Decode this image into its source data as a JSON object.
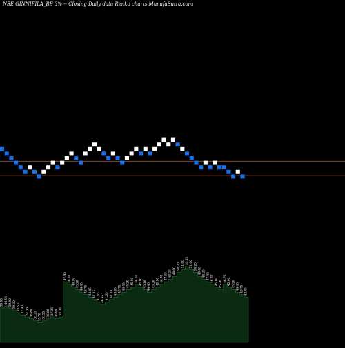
{
  "header": {
    "title": "NSE GINNIFILA_BE 3% -- Closing Daily data  Renko  charts MunafaSutra.com"
  },
  "chart_data": [
    {
      "type": "renko",
      "title": "NSE GINNIFILA_BE 3% -- Closing Daily data  Renko  charts MunafaSutra.com",
      "brick_colors": {
        "up": "#ffffff",
        "down": "#1e6fe6"
      },
      "reference_line_color": "#a0522d",
      "bricks": [
        {
          "i": 0,
          "level": 17,
          "dir": "down"
        },
        {
          "i": 1,
          "level": 16,
          "dir": "down"
        },
        {
          "i": 2,
          "level": 15,
          "dir": "down"
        },
        {
          "i": 3,
          "level": 14,
          "dir": "down"
        },
        {
          "i": 4,
          "level": 13,
          "dir": "down"
        },
        {
          "i": 5,
          "level": 12,
          "dir": "down"
        },
        {
          "i": 6,
          "level": 13,
          "dir": "up"
        },
        {
          "i": 7,
          "level": 12,
          "dir": "down"
        },
        {
          "i": 8,
          "level": 11,
          "dir": "down"
        },
        {
          "i": 9,
          "level": 12,
          "dir": "up"
        },
        {
          "i": 10,
          "level": 13,
          "dir": "up"
        },
        {
          "i": 11,
          "level": 14,
          "dir": "up"
        },
        {
          "i": 12,
          "level": 13,
          "dir": "down"
        },
        {
          "i": 13,
          "level": 14,
          "dir": "up"
        },
        {
          "i": 14,
          "level": 15,
          "dir": "up"
        },
        {
          "i": 15,
          "level": 16,
          "dir": "up"
        },
        {
          "i": 16,
          "level": 15,
          "dir": "down"
        },
        {
          "i": 17,
          "level": 14,
          "dir": "down"
        },
        {
          "i": 18,
          "level": 16,
          "dir": "up"
        },
        {
          "i": 19,
          "level": 17,
          "dir": "up"
        },
        {
          "i": 20,
          "level": 18,
          "dir": "up"
        },
        {
          "i": 21,
          "level": 17,
          "dir": "up"
        },
        {
          "i": 22,
          "level": 16,
          "dir": "down"
        },
        {
          "i": 23,
          "level": 15,
          "dir": "down"
        },
        {
          "i": 24,
          "level": 16,
          "dir": "up"
        },
        {
          "i": 25,
          "level": 15,
          "dir": "down"
        },
        {
          "i": 26,
          "level": 14,
          "dir": "down"
        },
        {
          "i": 27,
          "level": 15,
          "dir": "up"
        },
        {
          "i": 28,
          "level": 16,
          "dir": "up"
        },
        {
          "i": 29,
          "level": 17,
          "dir": "up"
        },
        {
          "i": 30,
          "level": 16,
          "dir": "down"
        },
        {
          "i": 31,
          "level": 17,
          "dir": "up"
        },
        {
          "i": 32,
          "level": 16,
          "dir": "down"
        },
        {
          "i": 33,
          "level": 17,
          "dir": "up"
        },
        {
          "i": 34,
          "level": 18,
          "dir": "up"
        },
        {
          "i": 35,
          "level": 19,
          "dir": "up"
        },
        {
          "i": 36,
          "level": 18,
          "dir": "up"
        },
        {
          "i": 37,
          "level": 19,
          "dir": "up"
        },
        {
          "i": 38,
          "level": 18,
          "dir": "down"
        },
        {
          "i": 39,
          "level": 17,
          "dir": "up"
        },
        {
          "i": 40,
          "level": 16,
          "dir": "down"
        },
        {
          "i": 41,
          "level": 15,
          "dir": "down"
        },
        {
          "i": 42,
          "level": 14,
          "dir": "down"
        },
        {
          "i": 43,
          "level": 13,
          "dir": "down"
        },
        {
          "i": 44,
          "level": 14,
          "dir": "up"
        },
        {
          "i": 45,
          "level": 13,
          "dir": "down"
        },
        {
          "i": 46,
          "level": 14,
          "dir": "up"
        },
        {
          "i": 47,
          "level": 13,
          "dir": "down"
        },
        {
          "i": 48,
          "level": 13,
          "dir": "down"
        },
        {
          "i": 49,
          "level": 12,
          "dir": "down"
        },
        {
          "i": 50,
          "level": 11,
          "dir": "down"
        },
        {
          "i": 51,
          "level": 12,
          "dir": "up"
        },
        {
          "i": 52,
          "level": 11,
          "dir": "down"
        }
      ],
      "reference_levels": [
        14.8,
        11.7
      ],
      "volume_bars": [
        "39.90",
        "40.50",
        "39.90",
        "39.30",
        "38.50",
        "37.90",
        "37.35",
        "36.80",
        "36.25",
        "35.70",
        "36.25",
        "36.80",
        "37.35",
        "36.80",
        "37.35",
        "47.45",
        "46.70",
        "45.90",
        "45.20",
        "44.45",
        "43.75",
        "43.05",
        "42.35",
        "41.65",
        "40.95",
        "41.65",
        "42.35",
        "43.05",
        "43.75",
        "44.45",
        "45.20",
        "45.90",
        "46.70",
        "45.90",
        "45.20",
        "44.45",
        "45.20",
        "45.90",
        "46.70",
        "47.45",
        "48.20",
        "49.00",
        "50.20",
        "51.00",
        "51.85",
        "51.00",
        "50.20",
        "49.00",
        "48.20",
        "47.45",
        "46.70",
        "45.90",
        "45.20",
        "46.70",
        "45.90",
        "45.20",
        "44.45",
        "43.75",
        "43.05"
      ]
    }
  ]
}
